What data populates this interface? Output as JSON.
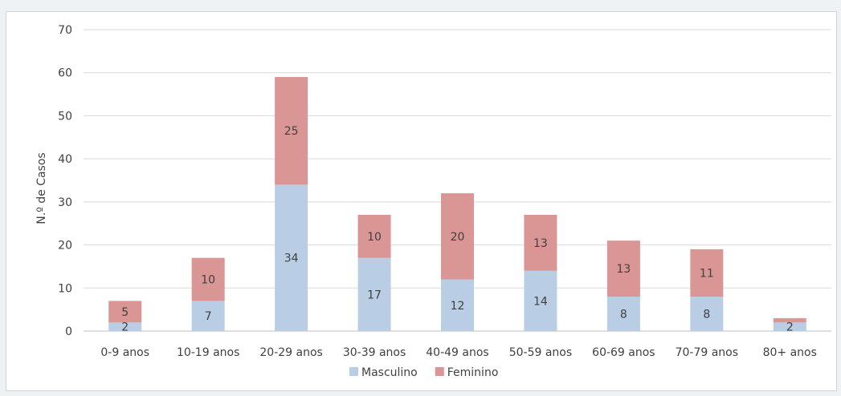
{
  "chart_data": {
    "type": "bar",
    "stacked": true,
    "title": "",
    "xlabel": "",
    "ylabel": "N.º de Casos",
    "ylim": [
      0,
      70
    ],
    "yticks": [
      0,
      10,
      20,
      30,
      40,
      50,
      60,
      70
    ],
    "grid": true,
    "legend_position": "bottom",
    "categories": [
      "0-9 anos",
      "10-19 anos",
      "20-29 anos",
      "30-39 anos",
      "40-49 anos",
      "50-59 anos",
      "60-69 anos",
      "70-79 anos",
      "80+ anos"
    ],
    "series": [
      {
        "name": "Masculino",
        "color": "#b9cde4",
        "values": [
          2,
          7,
          34,
          17,
          12,
          14,
          8,
          8,
          2
        ]
      },
      {
        "name": "Feminino",
        "color": "#d99694",
        "values": [
          5,
          10,
          25,
          10,
          20,
          13,
          13,
          11,
          1
        ]
      }
    ],
    "data_labels": [
      [
        "2",
        "7",
        "34",
        "17",
        "12",
        "14",
        "8",
        "8",
        "2"
      ],
      [
        "5",
        "10",
        "25",
        "10",
        "20",
        "13",
        "13",
        "11",
        ""
      ]
    ]
  }
}
